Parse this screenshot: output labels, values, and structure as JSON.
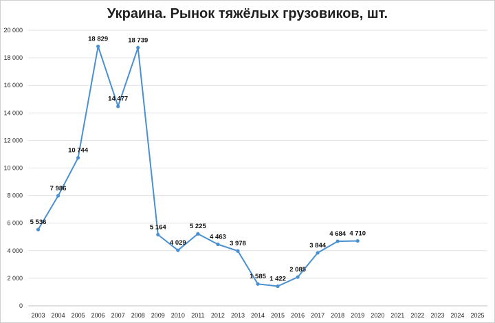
{
  "chart_data": {
    "type": "line",
    "title": "Украина. Рынок тяжёлых грузовиков, шт.",
    "xlabel": "",
    "ylabel": "",
    "grid": true,
    "legend": "none",
    "ylim": [
      0,
      20000
    ],
    "y_ticks": [
      {
        "value": 0,
        "label": "0"
      },
      {
        "value": 2000,
        "label": "2 000"
      },
      {
        "value": 4000,
        "label": "4 000"
      },
      {
        "value": 6000,
        "label": "6 000"
      },
      {
        "value": 8000,
        "label": "8 000"
      },
      {
        "value": 10000,
        "label": "10 000"
      },
      {
        "value": 12000,
        "label": "12 000"
      },
      {
        "value": 14000,
        "label": "14 000"
      },
      {
        "value": 16000,
        "label": "16 000"
      },
      {
        "value": 18000,
        "label": "18 000"
      },
      {
        "value": 20000,
        "label": "20 000"
      }
    ],
    "categories": [
      "2003",
      "2004",
      "2005",
      "2006",
      "2007",
      "2008",
      "2009",
      "2010",
      "2011",
      "2012",
      "2013",
      "2014",
      "2015",
      "2016",
      "2017",
      "2018",
      "2019",
      "2020",
      "2021",
      "2022",
      "2023",
      "2024",
      "2025"
    ],
    "series": [
      {
        "color": "#4a90d0",
        "values": [
          5536,
          7986,
          10744,
          18829,
          14477,
          18739,
          5164,
          4029,
          5225,
          4463,
          3978,
          1585,
          1422,
          2085,
          3844,
          4684,
          4710,
          null,
          null,
          null,
          null,
          null,
          null
        ],
        "data_labels": [
          "5 536",
          "7 986",
          "10 744",
          "18 829",
          "14 477",
          "18 739",
          "5 164",
          "4 029",
          "5 225",
          "4 463",
          "3 978",
          "1 585",
          "1 422",
          "2 085",
          "3 844",
          "4 684",
          "4 710",
          null,
          null,
          null,
          null,
          null,
          null
        ]
      }
    ]
  }
}
